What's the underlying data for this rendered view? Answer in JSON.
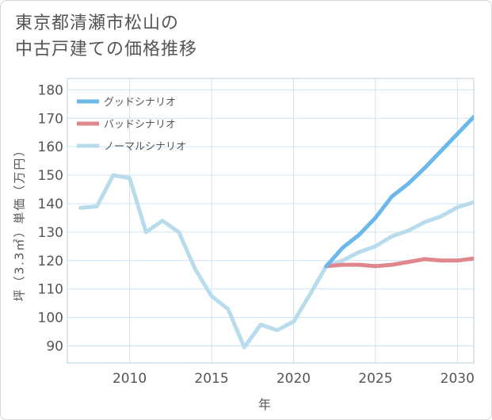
{
  "title_lines": [
    "東京都清瀬市松山の",
    "中古戸建ての価格推移"
  ],
  "chart_data": {
    "type": "line",
    "xlabel": "年",
    "ylabel": "坪（3.3㎡）単価（万円）",
    "xlim": [
      2006.2,
      2031
    ],
    "ylim": [
      84,
      184
    ],
    "x_ticks": [
      2010,
      2015,
      2020,
      2025,
      2030
    ],
    "y_ticks": [
      90,
      100,
      110,
      120,
      130,
      140,
      150,
      160,
      170,
      180
    ],
    "grid": true,
    "legend_position": "top-left",
    "series": [
      {
        "name": "グッドシナリオ",
        "color": "#6cb8ea",
        "x": [
          2022,
          2023,
          2024,
          2025,
          2026,
          2027,
          2028,
          2029,
          2030,
          2031
        ],
        "y": [
          118,
          124.5,
          129,
          135,
          142.5,
          147,
          152.5,
          158.5,
          164.5,
          170.5
        ]
      },
      {
        "name": "バッドシナリオ",
        "color": "#e0878b",
        "x": [
          2022,
          2023,
          2024,
          2025,
          2026,
          2027,
          2028,
          2029,
          2030,
          2031
        ],
        "y": [
          118,
          118.5,
          118.5,
          118,
          118.5,
          119.5,
          120.5,
          120,
          120,
          120.7
        ]
      },
      {
        "name": "ノーマルシナリオ",
        "color": "#b8dcec",
        "x": [
          2007,
          2008,
          2009,
          2010,
          2011,
          2012,
          2013,
          2014,
          2015,
          2016,
          2017,
          2018,
          2019,
          2020,
          2021,
          2022,
          2023,
          2024,
          2025,
          2026,
          2027,
          2028,
          2029,
          2030,
          2031
        ],
        "y": [
          138.5,
          139,
          150,
          149,
          130,
          134,
          130,
          117,
          107.5,
          103,
          89.5,
          97.5,
          95.5,
          98.5,
          108,
          118,
          120,
          123,
          125,
          128.5,
          130.5,
          133.5,
          135.5,
          138.7,
          140.5
        ]
      }
    ]
  }
}
